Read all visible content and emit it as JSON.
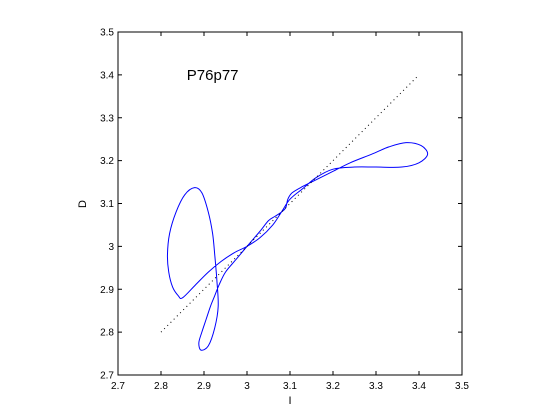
{
  "chart_data": {
    "type": "line",
    "title": "",
    "xlabel": "I",
    "ylabel": "D",
    "xlim": [
      2.7,
      3.5
    ],
    "ylim": [
      2.7,
      3.5
    ],
    "x_ticks": [
      "2.7",
      "2.8",
      "2.9",
      "3",
      "3.1",
      "3.2",
      "3.3",
      "3.4",
      "3.5"
    ],
    "y_ticks": [
      "2.7",
      "2.8",
      "2.9",
      "3",
      "3.1",
      "3.2",
      "3.3",
      "3.4",
      "3.5"
    ],
    "grid": false,
    "legend": "none",
    "annotation": {
      "text": "P76p77",
      "x": 2.86,
      "y": 3.4
    },
    "series": [
      {
        "style": "solid",
        "color": "#0000ff",
        "points": [
          [
            2.85,
            2.88
          ],
          [
            2.88,
            2.91
          ],
          [
            2.91,
            2.94
          ],
          [
            2.94,
            2.965
          ],
          [
            2.97,
            2.985
          ],
          [
            3.0,
            3.0
          ],
          [
            3.03,
            3.02
          ],
          [
            3.06,
            3.05
          ],
          [
            3.08,
            3.08
          ],
          [
            3.1,
            3.11
          ],
          [
            3.13,
            3.135
          ],
          [
            3.16,
            3.16
          ],
          [
            3.2,
            3.18
          ],
          [
            3.25,
            3.185
          ],
          [
            3.3,
            3.185
          ],
          [
            3.36,
            3.185
          ],
          [
            3.4,
            3.195
          ],
          [
            3.42,
            3.215
          ],
          [
            3.405,
            3.235
          ],
          [
            3.37,
            3.242
          ],
          [
            3.33,
            3.232
          ],
          [
            3.29,
            3.215
          ],
          [
            3.24,
            3.195
          ],
          [
            3.2,
            3.175
          ],
          [
            3.16,
            3.155
          ],
          [
            3.13,
            3.14
          ],
          [
            3.105,
            3.125
          ],
          [
            3.095,
            3.11
          ],
          [
            3.09,
            3.09
          ],
          [
            3.08,
            3.08
          ],
          [
            3.065,
            3.07
          ],
          [
            3.05,
            3.06
          ],
          [
            3.03,
            3.035
          ],
          [
            3.0,
            3.0
          ],
          [
            2.975,
            2.97
          ],
          [
            2.95,
            2.94
          ],
          [
            2.935,
            2.91
          ],
          [
            2.925,
            2.885
          ],
          [
            2.915,
            2.86
          ],
          [
            2.905,
            2.83
          ],
          [
            2.895,
            2.8
          ],
          [
            2.888,
            2.775
          ],
          [
            2.893,
            2.758
          ],
          [
            2.91,
            2.768
          ],
          [
            2.925,
            2.81
          ],
          [
            2.933,
            2.86
          ],
          [
            2.93,
            2.92
          ],
          [
            2.925,
            2.98
          ],
          [
            2.92,
            3.03
          ],
          [
            2.91,
            3.08
          ],
          [
            2.895,
            3.125
          ],
          [
            2.878,
            3.137
          ],
          [
            2.855,
            3.12
          ],
          [
            2.835,
            3.08
          ],
          [
            2.82,
            3.03
          ],
          [
            2.815,
            2.98
          ],
          [
            2.818,
            2.94
          ],
          [
            2.827,
            2.905
          ],
          [
            2.84,
            2.885
          ],
          [
            2.85,
            2.88
          ]
        ]
      },
      {
        "style": "dotted",
        "color": "#000000",
        "points": [
          [
            2.8,
            2.8
          ],
          [
            3.4,
            3.4
          ]
        ]
      }
    ]
  }
}
